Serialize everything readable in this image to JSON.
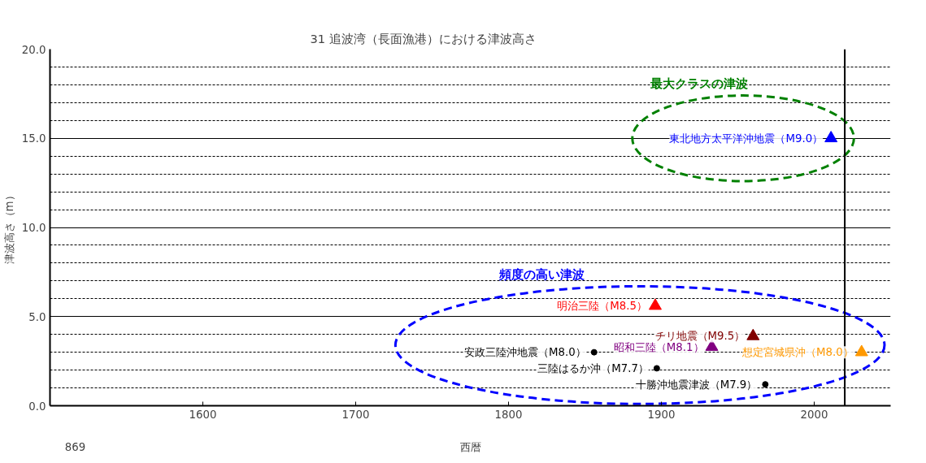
{
  "chart_data": {
    "type": "scatter",
    "title": "31  追波湾（長面漁港）における津波高さ",
    "xlabel": "西暦",
    "ylabel": "津波高さ（m）",
    "xlim": [
      1500,
      2050
    ],
    "xticks": [
      1600,
      1700,
      1800,
      1900,
      2000
    ],
    "ylim": [
      0,
      20
    ],
    "yticks": [
      {
        "value": 0,
        "label": "0.0"
      },
      {
        "value": 1,
        "label": null
      },
      {
        "value": 2,
        "label": null
      },
      {
        "value": 3,
        "label": null
      },
      {
        "value": 4,
        "label": null
      },
      {
        "value": 5,
        "label": "5.0"
      },
      {
        "value": 6,
        "label": null
      },
      {
        "value": 7,
        "label": null
      },
      {
        "value": 8,
        "label": null
      },
      {
        "value": 9,
        "label": null
      },
      {
        "value": 10,
        "label": "10.0"
      },
      {
        "value": 11,
        "label": null
      },
      {
        "value": 12,
        "label": null
      },
      {
        "value": 13,
        "label": null
      },
      {
        "value": 14,
        "label": null
      },
      {
        "value": 15,
        "label": "15.0"
      },
      {
        "value": 16,
        "label": null
      },
      {
        "value": 17,
        "label": null
      },
      {
        "value": 18,
        "label": null
      },
      {
        "value": 19,
        "label": null
      },
      {
        "value": 20,
        "label": "20.0"
      }
    ],
    "grid": "y",
    "series": [
      {
        "color": "#008000",
        "marker": "triangle",
        "x": [
          2011
        ],
        "values": [
          15.0
        ],
        "colors": [
          "#0000ff"
        ]
      },
      {
        "color": "#0000ff",
        "marker": "triangle",
        "x": [
          1896,
          1933,
          1960,
          2031
        ],
        "values": [
          5.6,
          3.3,
          3.9,
          3.0
        ],
        "colors": [
          "#ff0000",
          "#800080",
          "#800000",
          "#ff9900"
        ]
      },
      {
        "color": "#0000ff",
        "marker": "circle",
        "x": [
          1856,
          1897,
          1968
        ],
        "values": [
          3.0,
          2.1,
          1.2
        ],
        "colors": [
          "#000000",
          "#000000",
          "#000000"
        ]
      }
    ],
    "annotations": [
      {
        "text": "東北地方太平洋沖地震（M9.0）",
        "x": 2011,
        "y": 15.0
      },
      {
        "text": "明治三陸（M8.5）",
        "x": 1896,
        "y": 5.6
      },
      {
        "text": "昭和三陸（M8.1）",
        "x": 1933,
        "y": 3.3
      },
      {
        "text": "チリ地震（M9.5）",
        "x": 1960,
        "y": 3.9
      },
      {
        "text": "想定宮城県沖（M8.0）",
        "x": 2031,
        "y": 3.0
      },
      {
        "text": "安政三陸沖地震（M8.0）",
        "x": 1856,
        "y": 3.0
      },
      {
        "text": "三陸はるか沖（M7.7）",
        "x": 1897,
        "y": 2.1
      },
      {
        "text": "十勝沖地震津波（M7.9）",
        "x": 1968,
        "y": 1.2
      },
      "最大クラスの津波",
      "頻度の高い津波",
      "869"
    ],
    "ref_lines": [
      {
        "axis": "x",
        "value": 2020,
        "color": "#000000"
      }
    ]
  }
}
